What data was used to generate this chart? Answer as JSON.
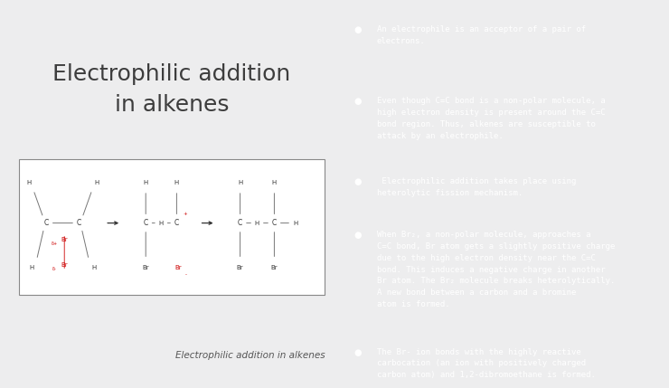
{
  "bg_left": "#ededee",
  "bg_right": "#2fa84f",
  "title": "Electrophilic addition\nin alkenes",
  "title_color": "#3d3d3d",
  "title_fontsize": 18,
  "caption": "Electrophilic addition in alkenes",
  "caption_color": "#555555",
  "caption_fontsize": 7.5,
  "bullet_color": "#ffffff",
  "bullet_text_color": "#ffffff",
  "bullet_fontsize": 6.5,
  "bullet_linespacing": 1.55,
  "bullets": [
    "An electrophile is an acceptor of a pair of\nelectrons.",
    "Even though C=C bond is a non-polar molecule, a\nhigh electron density is present around the C=C\nbond region. Thus, alkenes are susceptible to\nattack by an electrophile.",
    " Electrophilic addition takes place using\nheterolytic fission mechanism.",
    "When Br₂, a non-polar molecule, approaches a\nC=C bond, Br atom gets a slightly positive charge\ndue to the high electron density near the C=C\nbond. This induces a negative charge in another\nBr atom. The Br₂ molecule breaks heterolytically.\nA new bond between a carbon and a bromine\natom is formed.",
    "The Br- ion bonds with the highly reactive\ncarbocation (an ion with positively charged\ncarbon atom) and 1,2-dibromoethane is formed."
  ],
  "diagram_col": "#333333",
  "diagram_red": "#cc0000",
  "diagram_line_col": "#777777",
  "box_edge": "#888888"
}
